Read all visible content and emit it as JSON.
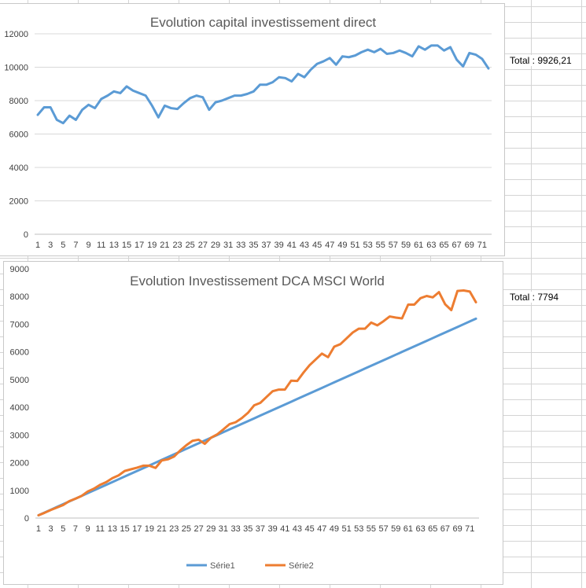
{
  "chart_data": [
    {
      "type": "line",
      "title": "Evolution capital investissement direct",
      "xlabel": "",
      "ylabel": "",
      "ylim": [
        0,
        12000
      ],
      "yticks": [
        0,
        2000,
        4000,
        6000,
        8000,
        10000,
        12000
      ],
      "xticks": [
        "1",
        "3",
        "5",
        "7",
        "9",
        "11",
        "13",
        "15",
        "17",
        "19",
        "21",
        "23",
        "25",
        "27",
        "29",
        "31",
        "33",
        "35",
        "37",
        "39",
        "41",
        "43",
        "45",
        "47",
        "49",
        "51",
        "53",
        "55",
        "57",
        "59",
        "61",
        "63",
        "65",
        "67",
        "69",
        "71"
      ],
      "gridlines": true,
      "legend": "none",
      "series": [
        {
          "color": "#5b9bd5",
          "values": [
            7150,
            7600,
            7600,
            6850,
            6650,
            7100,
            6850,
            7450,
            7750,
            7550,
            8100,
            8300,
            8550,
            8450,
            8850,
            8600,
            8450,
            8300,
            7700,
            7000,
            7700,
            7550,
            7500,
            7850,
            8150,
            8300,
            8200,
            7450,
            7900,
            8000,
            8150,
            8300,
            8300,
            8400,
            8550,
            8950,
            8950,
            9100,
            9400,
            9350,
            9150,
            9600,
            9400,
            9850,
            10200,
            10350,
            10550,
            10150,
            10650,
            10600,
            10700,
            10900,
            11050,
            10900,
            11100,
            10800,
            10850,
            11000,
            10850,
            10650,
            11250,
            11050,
            11300,
            11300,
            11000,
            11200,
            10450,
            10050,
            10850,
            10750,
            10500,
            9926
          ]
        }
      ]
    },
    {
      "type": "line",
      "title": "Evolution Investissement DCA MSCI World",
      "xlabel": "",
      "ylabel": "",
      "ylim": [
        0,
        9000
      ],
      "yticks": [
        0,
        1000,
        2000,
        3000,
        4000,
        5000,
        6000,
        7000,
        8000,
        9000
      ],
      "xticks": [
        "1",
        "3",
        "5",
        "7",
        "9",
        "11",
        "13",
        "15",
        "17",
        "19",
        "21",
        "23",
        "25",
        "27",
        "29",
        "31",
        "33",
        "35",
        "37",
        "39",
        "41",
        "43",
        "45",
        "47",
        "49",
        "51",
        "53",
        "55",
        "57",
        "59",
        "61",
        "63",
        "65",
        "67",
        "69",
        "71"
      ],
      "gridlines": false,
      "legend": "bottom",
      "series": [
        {
          "name": "Série1",
          "color": "#5b9bd5",
          "values": [
            100,
            200,
            300,
            400,
            500,
            600,
            700,
            800,
            900,
            1000,
            1100,
            1200,
            1300,
            1400,
            1500,
            1600,
            1700,
            1800,
            1900,
            2000,
            2100,
            2200,
            2300,
            2400,
            2500,
            2600,
            2700,
            2800,
            2900,
            3000,
            3100,
            3200,
            3300,
            3400,
            3500,
            3600,
            3700,
            3800,
            3900,
            4000,
            4100,
            4200,
            4300,
            4400,
            4500,
            4600,
            4700,
            4800,
            4900,
            5000,
            5100,
            5200,
            5300,
            5400,
            5500,
            5600,
            5700,
            5800,
            5900,
            6000,
            6100,
            6200,
            6300,
            6400,
            6500,
            6600,
            6700,
            6800,
            6900,
            7000,
            7100,
            7200
          ]
        },
        {
          "name": "Série2",
          "color": "#ed7d31",
          "values": [
            100,
            190,
            290,
            380,
            470,
            610,
            700,
            800,
            960,
            1060,
            1200,
            1300,
            1440,
            1540,
            1700,
            1760,
            1820,
            1890,
            1890,
            1810,
            2080,
            2120,
            2220,
            2440,
            2630,
            2790,
            2830,
            2680,
            2900,
            3020,
            3200,
            3390,
            3460,
            3610,
            3800,
            4070,
            4160,
            4370,
            4580,
            4640,
            4640,
            4960,
            4950,
            5250,
            5520,
            5730,
            5940,
            5810,
            6190,
            6280,
            6490,
            6700,
            6840,
            6840,
            7060,
            6960,
            7110,
            7280,
            7240,
            7210,
            7710,
            7710,
            7940,
            8020,
            7970,
            8160,
            7720,
            7510,
            8200,
            8220,
            8180,
            7794
          ]
        }
      ]
    }
  ],
  "labels": {
    "total1": "Total : 9926,21",
    "total2": "Total : 7794"
  }
}
